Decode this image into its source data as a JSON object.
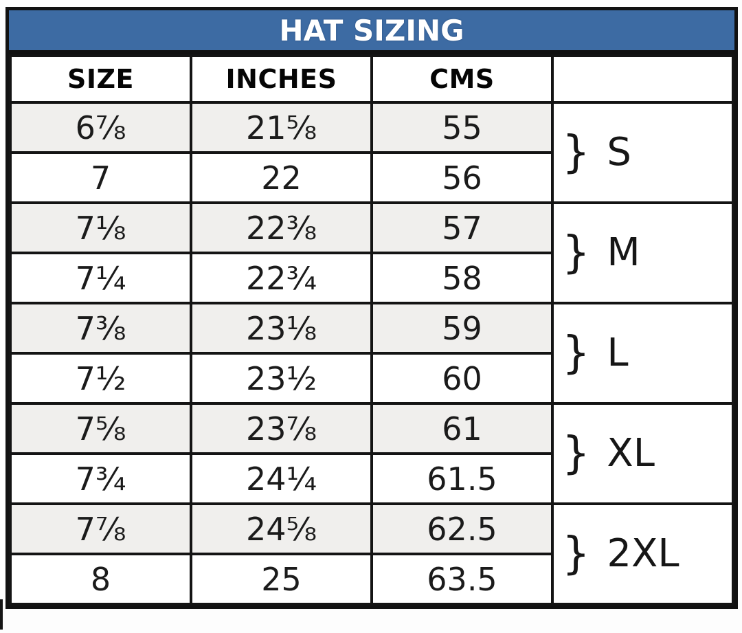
{
  "chart_data": {
    "type": "table",
    "title": "HAT SIZING",
    "columns": {
      "size": "SIZE",
      "inches": "INCHES",
      "cms": "CMS",
      "group": ""
    },
    "rows": [
      {
        "size": "6⅞",
        "inches": "21⅝",
        "cms": "55"
      },
      {
        "size": "7",
        "inches": "22",
        "cms": "56"
      },
      {
        "size": "7⅛",
        "inches": "22⅜",
        "cms": "57"
      },
      {
        "size": "7¼",
        "inches": "22¾",
        "cms": "58"
      },
      {
        "size": "7⅜",
        "inches": "23⅛",
        "cms": "59"
      },
      {
        "size": "7½",
        "inches": "23½",
        "cms": "60"
      },
      {
        "size": "7⅝",
        "inches": "23⅞",
        "cms": "61"
      },
      {
        "size": "7¾",
        "inches": "24¼",
        "cms": "61.5"
      },
      {
        "size": "7⅞",
        "inches": "24⅝",
        "cms": "62.5"
      },
      {
        "size": "8",
        "inches": "25",
        "cms": "63.5"
      }
    ],
    "group_brace": "}",
    "groups": [
      {
        "label": "S"
      },
      {
        "label": "M"
      },
      {
        "label": "L"
      },
      {
        "label": "XL"
      },
      {
        "label": "2XL"
      }
    ],
    "layout_hints": {
      "rows_per_group": 2,
      "shaded_rows": "odd"
    }
  },
  "colors": {
    "title_bg": "#3d6ba3",
    "title_text": "#ffffff",
    "row_shaded_bg": "#f0efed",
    "border": "#141414",
    "text": "#1b1b1b"
  }
}
